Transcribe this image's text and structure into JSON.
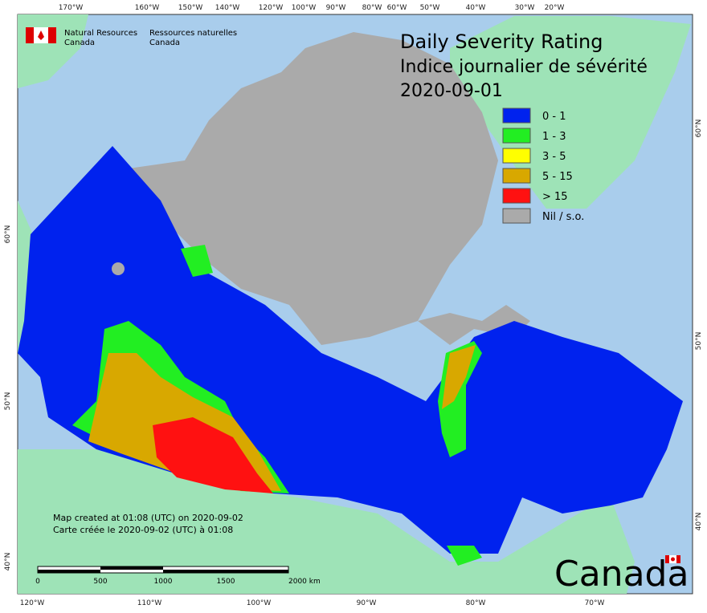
{
  "header": {
    "agency_en": [
      "Natural Resources",
      "Canada"
    ],
    "agency_fr": [
      "Ressources naturelles",
      "Canada"
    ]
  },
  "title": {
    "en": "Daily Severity Rating",
    "fr": "Indice journalier de sévérité",
    "date": "2020-09-01"
  },
  "legend": [
    {
      "label": "0 - 1",
      "color": "#0022ee"
    },
    {
      "label": "1 - 3",
      "color": "#22ee22"
    },
    {
      "label": "3 - 5",
      "color": "#ffff00"
    },
    {
      "label": "5 - 15",
      "color": "#d8a800"
    },
    {
      "label": "> 15",
      "color": "#ff1111"
    },
    {
      "label": "Nil / s.o.",
      "color": "#aaaaaa"
    }
  ],
  "graticule": {
    "top": [
      "170°W",
      "160°W",
      "150°W",
      "140°W",
      "120°W",
      "100°W",
      "90°W",
      "80°W",
      "60°W",
      "50°W",
      "40°W",
      "30°W",
      "20°W"
    ],
    "bottom": [
      "120°W",
      "110°W",
      "100°W",
      "90°W",
      "80°W",
      "70°W"
    ],
    "left": [
      "60°N",
      "50°N",
      "40°N"
    ],
    "right": [
      "60°N",
      "50°N",
      "40°N"
    ]
  },
  "credits": [
    "Map created at 01:08 (UTC) on 2020-09-02",
    "Carte créée le 2020-09-02 (UTC) à 01:08"
  ],
  "scale_bar": {
    "labels": [
      "0",
      "500",
      "1000",
      "1500",
      "2000  km"
    ]
  },
  "wordmark": "Canada"
}
